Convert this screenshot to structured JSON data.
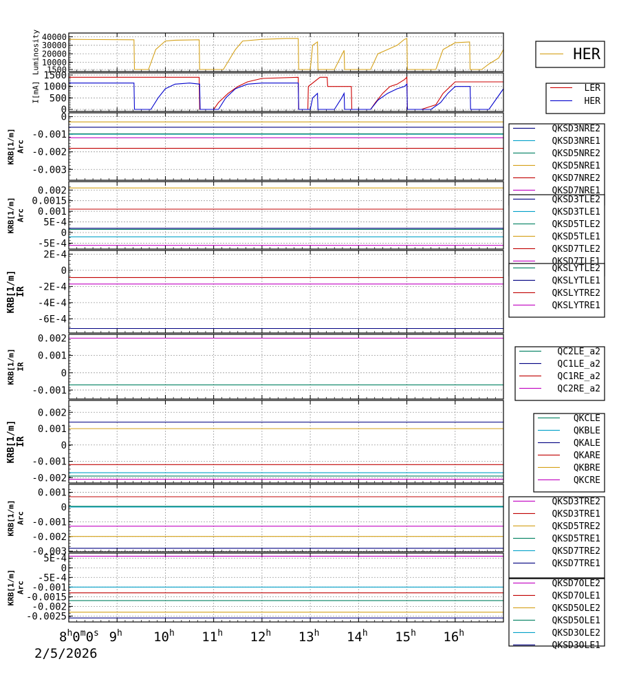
{
  "chart_data": [
    {
      "type": "line",
      "ylabel": "Luminosity",
      "yticks": [
        "40000",
        "30000",
        "20000",
        "10000",
        "1500"
      ],
      "ylim": [
        1500,
        42000
      ],
      "grid": true,
      "legend_position": "right",
      "series": [
        {
          "name": "HER",
          "color": "#d4a017",
          "x": [
            8.0,
            9.35,
            9.36,
            9.65,
            9.8,
            10.0,
            10.2,
            10.7,
            10.71,
            11.2,
            11.45,
            11.6,
            12.0,
            12.5,
            12.75,
            12.76,
            13.0,
            13.05,
            13.15,
            13.16,
            13.5,
            13.7,
            13.71,
            14.25,
            14.4,
            14.6,
            14.8,
            14.95,
            15.0,
            15.01,
            15.6,
            15.75,
            16.0,
            16.3,
            16.31,
            16.55,
            16.7,
            16.9,
            17.0
          ],
          "values": [
            37000,
            36500,
            1500,
            1500,
            25000,
            35000,
            36000,
            36500,
            1500,
            1500,
            25000,
            35000,
            37000,
            38000,
            38000,
            1500,
            1500,
            30000,
            34000,
            1500,
            1500,
            24000,
            1500,
            1500,
            20000,
            25000,
            30000,
            37000,
            38000,
            1500,
            1500,
            25000,
            33000,
            34000,
            1500,
            1500,
            8000,
            15000,
            25000
          ]
        }
      ]
    },
    {
      "type": "line",
      "ylabel": "I[mA]",
      "yticks": [
        "1500",
        "1000",
        "500",
        "0"
      ],
      "ylim": [
        0,
        1500
      ],
      "grid": true,
      "legend_position": "right",
      "series": [
        {
          "name": "LER",
          "color": "#cc0000",
          "x": [
            8.0,
            9.6,
            10.7,
            10.71,
            11.0,
            11.1,
            11.3,
            11.5,
            11.7,
            12.0,
            12.75,
            12.76,
            12.95,
            12.96,
            13.2,
            13.35,
            13.36,
            13.85,
            13.86,
            14.25,
            14.35,
            14.5,
            14.65,
            14.8,
            14.95,
            15.0,
            15.01,
            15.3,
            15.6,
            15.75,
            16.0,
            16.3,
            17.0
          ],
          "values": [
            1400,
            1400,
            1400,
            0,
            0,
            300,
            700,
            1000,
            1200,
            1350,
            1400,
            0,
            0,
            1000,
            1400,
            1400,
            1000,
            1000,
            0,
            0,
            300,
            700,
            1000,
            1100,
            1300,
            1400,
            0,
            0,
            200,
            700,
            1200,
            1200,
            1200
          ]
        },
        {
          "name": "HER",
          "color": "#0000cc",
          "x": [
            8.0,
            9.35,
            9.36,
            9.7,
            9.85,
            10.0,
            10.2,
            10.5,
            10.71,
            10.72,
            11.1,
            11.25,
            11.45,
            11.7,
            12.0,
            12.5,
            12.75,
            12.76,
            13.0,
            13.05,
            13.15,
            13.16,
            13.5,
            13.65,
            13.7,
            13.71,
            14.25,
            14.4,
            14.6,
            14.8,
            14.95,
            15.0,
            15.01,
            15.5,
            15.7,
            15.85,
            16.0,
            16.31,
            16.32,
            16.7,
            16.9,
            17.0
          ],
          "values": [
            1150,
            1150,
            0,
            0,
            500,
            900,
            1100,
            1150,
            1100,
            0,
            0,
            500,
            900,
            1100,
            1150,
            1150,
            1150,
            0,
            0,
            500,
            700,
            0,
            0,
            500,
            700,
            0,
            0,
            400,
            700,
            900,
            1000,
            1100,
            0,
            0,
            300,
            700,
            1000,
            1000,
            0,
            0,
            600,
            900
          ]
        }
      ]
    },
    {
      "type": "line",
      "ylabel": "KRB[1/m]",
      "ysublabel": "Arc",
      "yticks": [
        "0",
        "-0.001",
        "-0.002",
        "-0.003"
      ],
      "ylim": [
        -0.0035,
        0.0001
      ],
      "grid": true,
      "legend_position": "right",
      "series": [
        {
          "name": "QKSD3NRE2",
          "color": "#000080",
          "values": [
            -0.0006
          ]
        },
        {
          "name": "QKSD3NRE1",
          "color": "#00a0c8",
          "values": [
            -0.001
          ]
        },
        {
          "name": "QKSD5NRE2",
          "color": "#008060",
          "values": [
            -0.00098
          ]
        },
        {
          "name": "QKSD5NRE1",
          "color": "#d4a017",
          "values": [
            -0.0003
          ]
        },
        {
          "name": "QKSD7NRE2",
          "color": "#c00000",
          "values": [
            -0.0018
          ]
        },
        {
          "name": "QKSD7NRE1",
          "color": "#c000c0",
          "values": [
            -0.0012
          ]
        }
      ]
    },
    {
      "type": "line",
      "ylabel": "KRB[1/m]",
      "ysublabel": "Arc",
      "yticks": [
        "0.002",
        "0.0015",
        "0.001",
        "5E-4",
        "0",
        "-5E-4"
      ],
      "ylim": [
        -0.00068,
        0.0023
      ],
      "grid": true,
      "legend_position": "right",
      "series": [
        {
          "name": "QKSD3TLE2",
          "color": "#000080",
          "values": [
            0.0002
          ]
        },
        {
          "name": "QKSD3TLE1",
          "color": "#00a0c8",
          "values": [
            -0.0002
          ]
        },
        {
          "name": "QKSD5TLE2",
          "color": "#008060",
          "values": [
            0.00015
          ]
        },
        {
          "name": "QKSD5TLE1",
          "color": "#d4a017",
          "values": [
            0.0021
          ]
        },
        {
          "name": "QKSD7TLE2",
          "color": "#c00000",
          "values": [
            0.0011
          ]
        },
        {
          "name": "QKSD7TLE1",
          "color": "#c000c0",
          "values": [
            -0.0006
          ]
        }
      ]
    },
    {
      "type": "line",
      "ylabel": "KRB[1/m]",
      "ysublabel": "IR",
      "yticks": [
        "2E-4",
        "0",
        "-2E-4",
        "-4E-4",
        "-6E-4"
      ],
      "ylim": [
        -0.00075,
        0.00022
      ],
      "grid": true,
      "legend_position": "right",
      "series": [
        {
          "name": "QKSLYTLE2",
          "color": "#008060",
          "values": [
            -0.00072
          ]
        },
        {
          "name": "QKSLYTLE1",
          "color": "#000080",
          "values": [
            -0.00072
          ]
        },
        {
          "name": "QKSLYTRE2",
          "color": "#c00000",
          "values": [
            -9e-05
          ]
        },
        {
          "name": "QKSLYTRE1",
          "color": "#c000c0",
          "values": [
            -0.00017
          ]
        }
      ]
    },
    {
      "type": "line",
      "ylabel": "KRB[1/m]",
      "ysublabel": "IR",
      "yticks": [
        "0.002",
        "0.001",
        "0",
        "-0.001"
      ],
      "ylim": [
        -0.0014,
        0.0021
      ],
      "grid": true,
      "legend_position": "right",
      "series": [
        {
          "name": "QC2LE_a2",
          "color": "#008060",
          "values": [
            -0.0007
          ]
        },
        {
          "name": "QC1LE_a2",
          "color": "#000080",
          "values": [
            0.002
          ]
        },
        {
          "name": "QC1RE_a2",
          "color": "#c00000",
          "values": [
            0.002
          ]
        },
        {
          "name": "QC2RE_a2",
          "color": "#c000c0",
          "values": [
            0.002
          ]
        }
      ]
    },
    {
      "type": "line",
      "ylabel": "KRB[1/m]",
      "ysublabel": "IR",
      "yticks": [
        "0.002",
        "0.001",
        "0",
        "-0.001",
        "-0.002"
      ],
      "ylim": [
        -0.0022,
        0.0026
      ],
      "grid": true,
      "legend_position": "right",
      "series": [
        {
          "name": "QKCLE",
          "color": "#008060",
          "values": [
            -0.0019
          ]
        },
        {
          "name": "QKBLE",
          "color": "#00a0c8",
          "values": [
            -0.0017
          ]
        },
        {
          "name": "QKALE",
          "color": "#000080",
          "values": [
            0.0014
          ]
        },
        {
          "name": "QKARE",
          "color": "#c00000",
          "values": [
            -0.0012
          ]
        },
        {
          "name": "QKBRE",
          "color": "#d4a017",
          "values": [
            0.001
          ]
        },
        {
          "name": "QKCRE",
          "color": "#c000c0",
          "values": [
            -0.0021
          ]
        }
      ]
    },
    {
      "type": "line",
      "ylabel": "KRB[1/m]",
      "ysublabel": "Arc",
      "yticks": [
        "0.001",
        "0",
        "-0.001",
        "-0.002",
        "-0.003"
      ],
      "ylim": [
        -0.0029,
        0.0014
      ],
      "grid": true,
      "legend_position": "right",
      "series": [
        {
          "name": "QKSD3TRE2",
          "color": "#c000c0",
          "values": [
            -0.0013
          ]
        },
        {
          "name": "QKSD3TRE1",
          "color": "#c00000",
          "values": [
            0.0007
          ]
        },
        {
          "name": "QKSD5TRE2",
          "color": "#d4a017",
          "values": [
            -0.002
          ]
        },
        {
          "name": "QKSD5TRE1",
          "color": "#008060",
          "values": [
            5e-05
          ]
        },
        {
          "name": "QKSD7TRE2",
          "color": "#00a0c8",
          "values": [
            0.0
          ]
        },
        {
          "name": "QKSD7TRE1",
          "color": "#000080",
          "values": [
            -0.0028
          ]
        }
      ]
    },
    {
      "type": "line",
      "ylabel": "KRB[1/m]",
      "ysublabel": "Arc",
      "yticks": [
        "5E-4",
        "0",
        "-5E-4",
        "-0.001",
        "-0.0015",
        "-0.002",
        "-0.0025"
      ],
      "ylim": [
        -0.0027,
        0.00065
      ],
      "grid": true,
      "legend_position": "right",
      "series": [
        {
          "name": "QKSD7OLE2",
          "color": "#c000c0",
          "values": [
            0.0006
          ]
        },
        {
          "name": "QKSD7OLE1",
          "color": "#c00000",
          "values": [
            -0.0013
          ]
        },
        {
          "name": "QKSD5OLE2",
          "color": "#d4a017",
          "values": [
            -0.0023
          ]
        },
        {
          "name": "QKSD5OLE1",
          "color": "#008060",
          "values": [
            -0.0017
          ]
        },
        {
          "name": "QKSD3OLE2",
          "color": "#00a0c8",
          "values": [
            -0.001
          ]
        },
        {
          "name": "QKSD3OLE1",
          "color": "#000080",
          "values": [
            -0.0026
          ]
        }
      ]
    }
  ],
  "x_axis": {
    "range": [
      8.0,
      17.0
    ],
    "ticks": [
      {
        "x": 9,
        "label": "9",
        "sup": "h"
      },
      {
        "x": 10,
        "label": "10",
        "sup": "h"
      },
      {
        "x": 11,
        "label": "11",
        "sup": "h"
      },
      {
        "x": 12,
        "label": "12",
        "sup": "h"
      },
      {
        "x": 13,
        "label": "13",
        "sup": "h"
      },
      {
        "x": 14,
        "label": "14",
        "sup": "h"
      },
      {
        "x": 15,
        "label": "15",
        "sup": "h"
      },
      {
        "x": 16,
        "label": "16",
        "sup": "h"
      }
    ],
    "origin_label": [
      {
        "text": "8",
        "sup": false
      },
      {
        "text": "h",
        "sup": true
      },
      {
        "text": "0",
        "sup": false
      },
      {
        "text": "m",
        "sup": true
      },
      {
        "text": "0",
        "sup": false
      },
      {
        "text": "s",
        "sup": true
      }
    ],
    "date": "2/5/2026"
  }
}
